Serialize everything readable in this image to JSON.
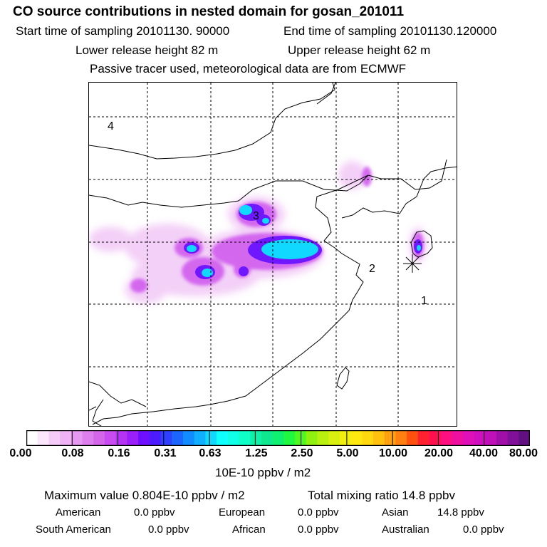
{
  "header": {
    "title": "CO  source contributions in nested domain for gosan_201011",
    "start_label": "Start time of sampling 20101130. 90000",
    "end_label": "End time of sampling 20101130.120000",
    "lower_label": "Lower release height   82 m",
    "upper_label": "Upper release height   62 m",
    "tracer_label": "Passive tracer used, meteorological data are from ECMWF"
  },
  "chart_data": {
    "type": "heatmap",
    "title": "CO  source contributions in nested domain for gosan_201011",
    "colorbar_ticks": [
      "0.00",
      "0.08",
      "0.16",
      "0.31",
      "0.63",
      "1.25",
      "2.50",
      "5.00",
      "10.00",
      "20.00",
      "40.00",
      "80.00"
    ],
    "colorbar_units": "10E-10 ppbv / m2",
    "region_labels": [
      "4",
      "3",
      "2",
      "1"
    ],
    "maximum_value": "0.804E-10",
    "colorbar_colors": [
      "#ffffff",
      "#fbe6fb",
      "#f5ccf7",
      "#efb2f4",
      "#e699f0",
      "#dd7fed",
      "#d466ea",
      "#c84cf0",
      "#b633f5",
      "#9b1ff8",
      "#6e10ff",
      "#4c1cff",
      "#3040ff",
      "#1c66ff",
      "#108cff",
      "#10b0ff",
      "#10d8ff",
      "#10ffff",
      "#10ffe8",
      "#10ffc8",
      "#10f0a8",
      "#10e890",
      "#10f070",
      "#20f840",
      "#50f820",
      "#90f010",
      "#b8f010",
      "#d8f010",
      "#f0f010",
      "#ffe810",
      "#ffd810",
      "#ffc010",
      "#ffa010",
      "#ff8010",
      "#ff5010",
      "#ff2030",
      "#ff1050",
      "#ff1080",
      "#f010a0",
      "#e010b8",
      "#d010c0",
      "#c010b8",
      "#a010a8",
      "#801098",
      "#601080"
    ]
  },
  "footer": {
    "max_label": "Maximum value  0.804E-10 ppbv / m2",
    "total_label": "Total mixing ratio       14.8 ppbv",
    "american": "American",
    "american_val": "0.0 ppbv",
    "european": "European",
    "european_val": "0.0 ppbv",
    "asian": "Asian",
    "asian_val": "14.8 ppbv",
    "south_american": "South American",
    "south_american_val": "0.0 ppbv",
    "african": "African",
    "african_val": "0.0 ppbv",
    "australian": "Australian",
    "australian_val": "0.0 ppbv"
  }
}
